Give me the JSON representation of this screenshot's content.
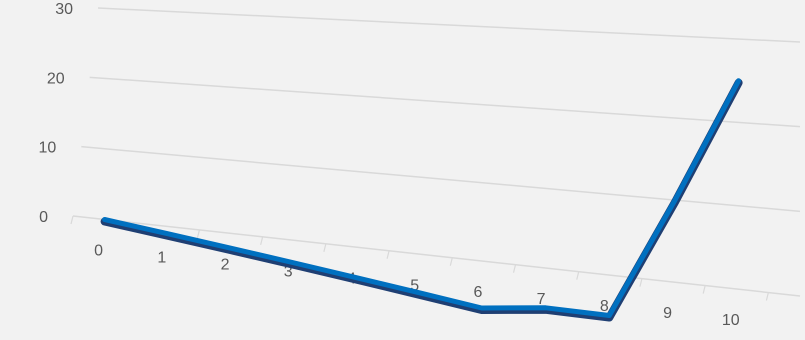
{
  "chart_data": {
    "type": "line",
    "title": "",
    "xlabel": "",
    "ylabel": "",
    "categories": [
      "0",
      "1",
      "2",
      "3",
      "4",
      "5",
      "6",
      "7",
      "8",
      "9",
      "10"
    ],
    "series": [
      {
        "values": [
          0,
          -1,
          -2,
          -3,
          -4,
          -5,
          -6,
          -5,
          -5,
          10,
          25
        ],
        "color": "#0070c0"
      }
    ],
    "y_ticks": [
      0,
      10,
      20,
      30
    ],
    "ylim": [
      0,
      30
    ],
    "grid": true,
    "perspective": "3d",
    "legend": "none"
  }
}
